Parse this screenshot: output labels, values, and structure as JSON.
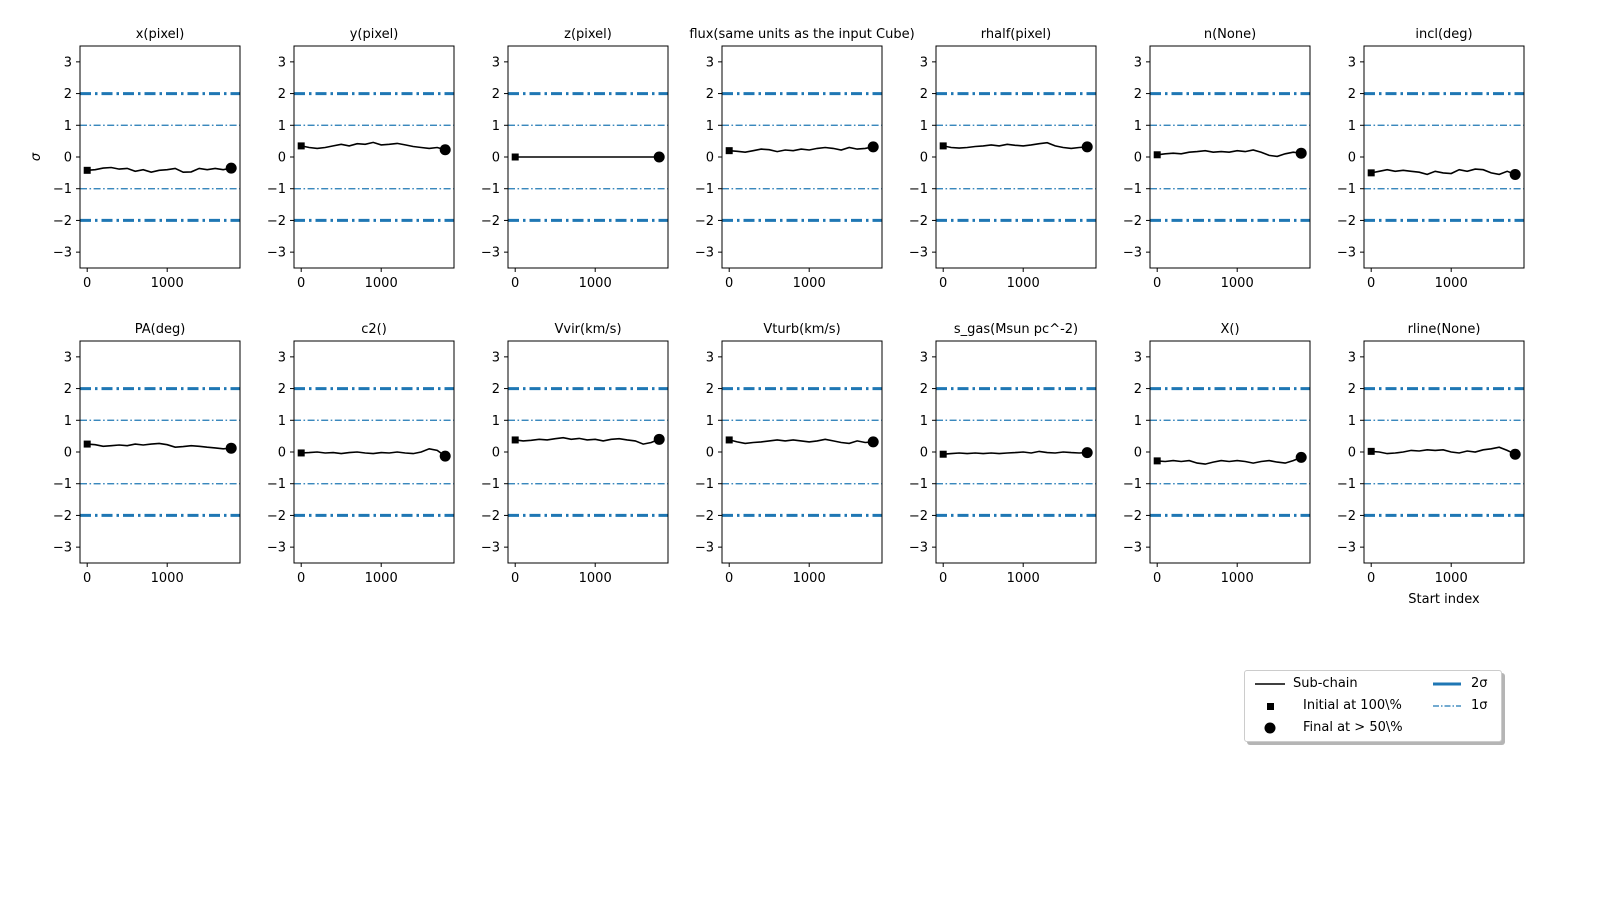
{
  "chart_data": {
    "type": "line",
    "ylabel": "σ",
    "xlabel": "Start index",
    "ylim": [
      -3.5,
      3.5
    ],
    "xlim": [
      -90,
      1910
    ],
    "yticks": [
      -3,
      -2,
      -1,
      0,
      1,
      2,
      3
    ],
    "xticks": [
      0,
      1000
    ],
    "x": [
      0,
      100,
      200,
      300,
      400,
      500,
      600,
      700,
      800,
      900,
      1000,
      1100,
      1200,
      1300,
      1400,
      1500,
      1600,
      1700,
      1800
    ],
    "reference_lines": [
      {
        "name": "2σ",
        "values": [
          2,
          -2
        ],
        "style": "dash-dot",
        "width": "thick",
        "color": "#1f77b4"
      },
      {
        "name": "1σ",
        "values": [
          1,
          -1
        ],
        "style": "dash-dot",
        "width": "thin",
        "color": "#1f77b4"
      }
    ],
    "panels": [
      {
        "title": "x(pixel)",
        "initial": -0.42,
        "final": -0.35,
        "values": [
          -0.42,
          -0.4,
          -0.35,
          -0.33,
          -0.38,
          -0.36,
          -0.45,
          -0.4,
          -0.48,
          -0.42,
          -0.4,
          -0.36,
          -0.48,
          -0.47,
          -0.36,
          -0.4,
          -0.36,
          -0.4,
          -0.35
        ]
      },
      {
        "title": "y(pixel)",
        "initial": 0.35,
        "final": 0.23,
        "values": [
          0.35,
          0.3,
          0.27,
          0.3,
          0.35,
          0.4,
          0.35,
          0.42,
          0.4,
          0.46,
          0.38,
          0.4,
          0.43,
          0.38,
          0.33,
          0.3,
          0.27,
          0.3,
          0.23
        ]
      },
      {
        "title": "z(pixel)",
        "initial": 0.0,
        "final": 0.0,
        "values": [
          0,
          0,
          0,
          0,
          0,
          0,
          0,
          0,
          0,
          0,
          0,
          0,
          0,
          0,
          0,
          0,
          0,
          0,
          0
        ]
      },
      {
        "title": "flux(same units as the input Cube)",
        "initial": 0.2,
        "final": 0.32,
        "values": [
          0.2,
          0.18,
          0.15,
          0.2,
          0.25,
          0.23,
          0.17,
          0.22,
          0.2,
          0.25,
          0.22,
          0.27,
          0.3,
          0.27,
          0.22,
          0.3,
          0.25,
          0.27,
          0.32
        ]
      },
      {
        "title": "rhalf(pixel)",
        "initial": 0.35,
        "final": 0.32,
        "values": [
          0.35,
          0.3,
          0.28,
          0.3,
          0.33,
          0.35,
          0.38,
          0.35,
          0.4,
          0.37,
          0.35,
          0.38,
          0.42,
          0.45,
          0.35,
          0.3,
          0.27,
          0.3,
          0.32
        ]
      },
      {
        "title": "n(None)",
        "initial": 0.07,
        "final": 0.12,
        "values": [
          0.07,
          0.1,
          0.12,
          0.1,
          0.15,
          0.17,
          0.2,
          0.15,
          0.17,
          0.15,
          0.2,
          0.17,
          0.22,
          0.15,
          0.05,
          0.02,
          0.1,
          0.15,
          0.12
        ]
      },
      {
        "title": "incl(deg)",
        "initial": -0.5,
        "final": -0.55,
        "values": [
          -0.5,
          -0.45,
          -0.4,
          -0.45,
          -0.42,
          -0.45,
          -0.48,
          -0.55,
          -0.45,
          -0.5,
          -0.52,
          -0.4,
          -0.45,
          -0.38,
          -0.4,
          -0.5,
          -0.55,
          -0.45,
          -0.55
        ]
      },
      {
        "title": "PA(deg)",
        "initial": 0.25,
        "final": 0.12,
        "values": [
          0.25,
          0.23,
          0.18,
          0.2,
          0.22,
          0.2,
          0.25,
          0.22,
          0.25,
          0.27,
          0.23,
          0.15,
          0.17,
          0.2,
          0.18,
          0.15,
          0.13,
          0.1,
          0.12
        ]
      },
      {
        "title": "c2()",
        "initial": -0.03,
        "final": -0.13,
        "values": [
          -0.03,
          -0.02,
          0.0,
          -0.03,
          -0.02,
          -0.05,
          -0.02,
          0.0,
          -0.03,
          -0.05,
          -0.02,
          -0.03,
          0.0,
          -0.03,
          -0.05,
          0.0,
          0.1,
          0.05,
          -0.13
        ]
      },
      {
        "title": "Vvir(km/s)",
        "initial": 0.38,
        "final": 0.4,
        "values": [
          0.38,
          0.35,
          0.37,
          0.4,
          0.38,
          0.42,
          0.45,
          0.4,
          0.43,
          0.38,
          0.4,
          0.35,
          0.4,
          0.42,
          0.38,
          0.35,
          0.25,
          0.3,
          0.4
        ]
      },
      {
        "title": "Vturb(km/s)",
        "initial": 0.38,
        "final": 0.32,
        "values": [
          0.38,
          0.32,
          0.27,
          0.3,
          0.32,
          0.35,
          0.38,
          0.35,
          0.38,
          0.35,
          0.32,
          0.35,
          0.4,
          0.35,
          0.3,
          0.27,
          0.35,
          0.3,
          0.32
        ]
      },
      {
        "title": "s_gas(Msun pc^-2)",
        "initial": -0.07,
        "final": -0.02,
        "values": [
          -0.07,
          -0.05,
          -0.03,
          -0.05,
          -0.03,
          -0.05,
          -0.03,
          -0.05,
          -0.03,
          -0.02,
          0.0,
          -0.03,
          0.02,
          -0.02,
          -0.03,
          0.0,
          -0.02,
          -0.03,
          -0.02
        ]
      },
      {
        "title": "X()",
        "initial": -0.28,
        "final": -0.17,
        "values": [
          -0.28,
          -0.3,
          -0.27,
          -0.3,
          -0.27,
          -0.35,
          -0.38,
          -0.32,
          -0.27,
          -0.3,
          -0.27,
          -0.3,
          -0.35,
          -0.3,
          -0.27,
          -0.32,
          -0.35,
          -0.27,
          -0.17
        ]
      },
      {
        "title": "rline(None)",
        "initial": 0.02,
        "final": -0.07,
        "values": [
          0.02,
          0.0,
          -0.05,
          -0.03,
          0.0,
          0.05,
          0.03,
          0.07,
          0.05,
          0.07,
          0.0,
          -0.03,
          0.03,
          0.0,
          0.07,
          0.1,
          0.15,
          0.05,
          -0.07
        ]
      }
    ],
    "legend": {
      "placement": "lower-right",
      "items": [
        {
          "label": "Sub-chain",
          "marker": "line",
          "color": "#000000"
        },
        {
          "label": "Initial at 100\\%",
          "marker": "square",
          "color": "#000000"
        },
        {
          "label": "Final at  > 50\\%",
          "marker": "circle",
          "color": "#000000"
        },
        {
          "label": "2σ",
          "marker": "thick-dashdot",
          "color": "#1f77b4"
        },
        {
          "label": "1σ",
          "marker": "thin-dashdot",
          "color": "#1f77b4"
        }
      ]
    },
    "grid": false
  }
}
